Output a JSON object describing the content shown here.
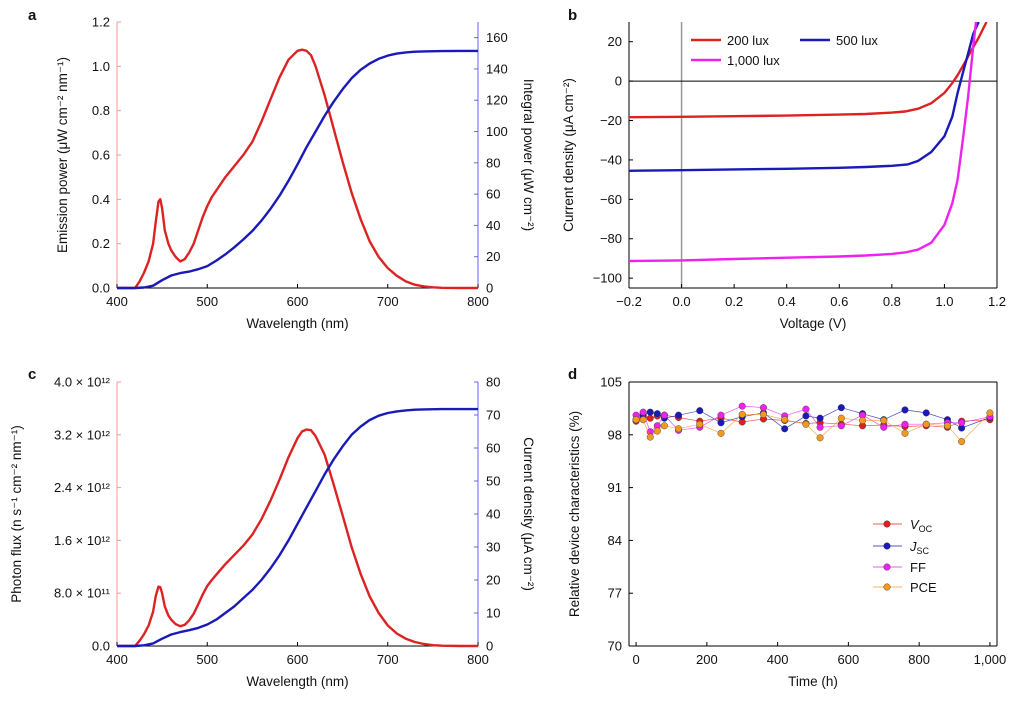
{
  "chart_data": [
    {
      "panel": "a",
      "type": "line",
      "xlabel": "Wavelength (nm)",
      "ylabel": "Emission power (μW cm⁻² nm⁻¹)",
      "y2label": "Integral power (μW cm⁻²)",
      "xlim": [
        400,
        800
      ],
      "ylim": [
        0,
        1.2
      ],
      "y2lim": [
        0,
        170
      ],
      "xticks": [
        "400",
        "500",
        "600",
        "700",
        "800"
      ],
      "yticks": [
        "0.0",
        "0.2",
        "0.4",
        "0.6",
        "0.8",
        "1.0",
        "1.2"
      ],
      "y2ticks": [
        "0",
        "20",
        "40",
        "60",
        "80",
        "100",
        "120",
        "140",
        "160"
      ],
      "colors": {
        "left_axis": "#f29a9a",
        "right_axis": "#6666ee"
      },
      "series": [
        {
          "color": "#dd2222",
          "axis": "left",
          "x": [
            400,
            415,
            420,
            425,
            430,
            435,
            440,
            443,
            446,
            448,
            450,
            453,
            457,
            460,
            465,
            470,
            475,
            480,
            485,
            490,
            495,
            500,
            505,
            510,
            520,
            530,
            540,
            550,
            560,
            570,
            580,
            590,
            600,
            605,
            610,
            615,
            620,
            630,
            640,
            650,
            660,
            670,
            680,
            690,
            700,
            710,
            720,
            730,
            740,
            750,
            760,
            780,
            800
          ],
          "y": [
            0,
            0,
            0,
            0.03,
            0.07,
            0.12,
            0.2,
            0.3,
            0.39,
            0.4,
            0.36,
            0.26,
            0.2,
            0.17,
            0.14,
            0.12,
            0.13,
            0.16,
            0.2,
            0.26,
            0.32,
            0.37,
            0.41,
            0.44,
            0.5,
            0.55,
            0.6,
            0.66,
            0.75,
            0.85,
            0.95,
            1.03,
            1.07,
            1.075,
            1.07,
            1.05,
            1.0,
            0.87,
            0.72,
            0.57,
            0.43,
            0.31,
            0.21,
            0.14,
            0.09,
            0.055,
            0.03,
            0.015,
            0.007,
            0.003,
            0.001,
            0,
            0
          ]
        },
        {
          "color": "#1a1ab8",
          "axis": "right",
          "x": [
            400,
            420,
            430,
            440,
            450,
            460,
            470,
            480,
            490,
            500,
            510,
            520,
            530,
            540,
            550,
            560,
            570,
            580,
            590,
            600,
            610,
            620,
            630,
            640,
            650,
            660,
            670,
            680,
            690,
            700,
            710,
            720,
            730,
            740,
            760,
            780,
            800
          ],
          "y": [
            0,
            0,
            0.3,
            1.5,
            5,
            8,
            9.5,
            10.5,
            12,
            14,
            17.5,
            21.5,
            26,
            31,
            36.5,
            43,
            50.5,
            59,
            68.5,
            79,
            90,
            100,
            110,
            119,
            127,
            134,
            139.5,
            143.5,
            146.5,
            148.5,
            149.8,
            150.6,
            151,
            151.2,
            151.4,
            151.5,
            151.5
          ]
        }
      ]
    },
    {
      "panel": "b",
      "type": "line",
      "xlabel": "Voltage (V)",
      "ylabel": "Current density (μA cm⁻²)",
      "xlim": [
        -0.2,
        1.2
      ],
      "ylim": [
        -105,
        30
      ],
      "xticks": [
        "−0.2",
        "0.0",
        "0.2",
        "0.4",
        "0.6",
        "0.8",
        "1.0",
        "1.2"
      ],
      "yticks": [
        "−100",
        "−80",
        "−60",
        "−40",
        "−20",
        "0",
        "20"
      ],
      "legend_position": "top-left",
      "series": [
        {
          "name": "200 lux",
          "color": "#dd2222",
          "x": [
            -0.2,
            0,
            0.2,
            0.4,
            0.6,
            0.7,
            0.8,
            0.85,
            0.9,
            0.95,
            1.0,
            1.03,
            1.05,
            1.08,
            1.1,
            1.13,
            1.16
          ],
          "y": [
            -18.3,
            -18.1,
            -17.8,
            -17.5,
            -17,
            -16.7,
            -16,
            -15.4,
            -14,
            -11.2,
            -6,
            -1,
            3,
            10,
            15,
            22,
            30
          ]
        },
        {
          "name": "500 lux",
          "color": "#1a1ab8",
          "x": [
            -0.2,
            0,
            0.2,
            0.4,
            0.6,
            0.7,
            0.8,
            0.86,
            0.9,
            0.95,
            1.0,
            1.03,
            1.05,
            1.07,
            1.09,
            1.11,
            1.13
          ],
          "y": [
            -45.5,
            -45.2,
            -44.8,
            -44.5,
            -44,
            -43.6,
            -43,
            -42.3,
            -40.5,
            -36,
            -28,
            -18,
            -6,
            4,
            14,
            24,
            30
          ]
        },
        {
          "name": "1,000 lux",
          "color": "#ee22ee",
          "x": [
            -0.2,
            0,
            0.2,
            0.4,
            0.6,
            0.7,
            0.8,
            0.85,
            0.9,
            0.95,
            1.0,
            1.03,
            1.05,
            1.07,
            1.09,
            1.11,
            1.12
          ],
          "y": [
            -91.3,
            -91,
            -90.3,
            -89.6,
            -89,
            -88.5,
            -87.7,
            -87,
            -85.5,
            -82,
            -73,
            -62,
            -50,
            -30,
            -8,
            18,
            30
          ]
        }
      ]
    },
    {
      "panel": "c",
      "type": "line",
      "xlabel": "Wavelength (nm)",
      "ylabel": "Photon flux (n s⁻¹ cm⁻² nm⁻¹)",
      "y2label": "Current density (μA cm⁻²)",
      "xlim": [
        400,
        800
      ],
      "ylim": [
        0,
        4000000000000.0
      ],
      "y2lim": [
        0,
        80
      ],
      "xticks": [
        "400",
        "500",
        "600",
        "700",
        "800"
      ],
      "yticks": [
        "0.0",
        "8.0 × 10¹¹",
        "1.6 × 10¹²",
        "2.4 × 10¹²",
        "3.2 × 10¹²",
        "4.0 × 10¹²"
      ],
      "y2ticks": [
        "0",
        "10",
        "20",
        "30",
        "40",
        "50",
        "60",
        "70",
        "80"
      ],
      "colors": {
        "left_axis": "#f29a9a",
        "right_axis": "#6666ee"
      },
      "series": [
        {
          "color": "#dd2222",
          "axis": "left",
          "x": [
            400,
            415,
            420,
            425,
            430,
            435,
            440,
            443,
            446,
            448,
            450,
            453,
            457,
            460,
            465,
            470,
            475,
            480,
            485,
            490,
            495,
            500,
            505,
            510,
            520,
            530,
            540,
            550,
            560,
            570,
            580,
            590,
            600,
            605,
            610,
            615,
            620,
            630,
            640,
            650,
            660,
            670,
            680,
            690,
            700,
            710,
            720,
            730,
            740,
            750,
            760,
            780,
            800
          ],
          "y": [
            0,
            0,
            0,
            80000000000.0,
            180000000000.0,
            310000000000.0,
            520000000000.0,
            760000000000.0,
            900000000000.0,
            890000000000.0,
            800000000000.0,
            600000000000.0,
            460000000000.0,
            400000000000.0,
            330000000000.0,
            300000000000.0,
            320000000000.0,
            390000000000.0,
            490000000000.0,
            630000000000.0,
            780000000000.0,
            910000000000.0,
            1000000000000.0,
            1080000000000.0,
            1240000000000.0,
            1380000000000.0,
            1520000000000.0,
            1690000000000.0,
            1920000000000.0,
            2200000000000.0,
            2520000000000.0,
            2860000000000.0,
            3150000000000.0,
            3250000000000.0,
            3280000000000.0,
            3270000000000.0,
            3180000000000.0,
            2900000000000.0,
            2450000000000.0,
            1980000000000.0,
            1500000000000.0,
            1090000000000.0,
            750000000000.0,
            500000000000.0,
            310000000000.0,
            190000000000.0,
            110000000000.0,
            60000000000.0,
            30000000000.0,
            12000000000.0,
            4000000000.0,
            0,
            0
          ]
        },
        {
          "color": "#1a1ab8",
          "axis": "right",
          "x": [
            400,
            420,
            430,
            440,
            450,
            460,
            470,
            480,
            490,
            500,
            510,
            520,
            530,
            540,
            550,
            560,
            570,
            580,
            590,
            600,
            610,
            620,
            630,
            640,
            650,
            660,
            670,
            680,
            690,
            700,
            710,
            720,
            730,
            740,
            760,
            780,
            800
          ],
          "y": [
            0,
            0,
            0.2,
            0.8,
            2.2,
            3.5,
            4.2,
            4.8,
            5.5,
            6.5,
            8,
            10,
            12,
            14.5,
            17,
            20,
            23.5,
            27.5,
            32,
            37,
            42,
            47,
            52,
            56.5,
            60.5,
            64,
            66.5,
            68.5,
            69.8,
            70.6,
            71.1,
            71.4,
            71.6,
            71.7,
            71.8,
            71.8,
            71.8
          ]
        }
      ]
    },
    {
      "panel": "d",
      "type": "scatter",
      "xlabel": "Time (h)",
      "ylabel": "Relative device characteristics (%)",
      "xlim": [
        -20,
        1020
      ],
      "ylim": [
        70,
        105
      ],
      "xticks": [
        "0",
        "200",
        "400",
        "600",
        "800",
        "1,000"
      ],
      "yticks": [
        "70",
        "77",
        "84",
        "91",
        "98",
        "105"
      ],
      "legend_position": "bottom-right",
      "series": [
        {
          "name": "VOC",
          "name_main": "V",
          "name_sub": "OC",
          "color": "#e02020",
          "x": [
            0,
            20,
            40,
            60,
            80,
            120,
            180,
            240,
            300,
            360,
            420,
            480,
            520,
            580,
            640,
            700,
            760,
            820,
            880,
            920,
            1000
          ],
          "y": [
            99.8,
            100.4,
            100.2,
            100.5,
            100.6,
            100.3,
            99.8,
            100.2,
            99.7,
            100.1,
            99.9,
            99.5,
            99.6,
            99.4,
            99.2,
            99.3,
            99.1,
            99.2,
            99.0,
            99.8,
            100.0
          ]
        },
        {
          "name": "JSC",
          "name_main": "J",
          "name_sub": "SC",
          "color": "#1a1ab8",
          "x": [
            0,
            20,
            40,
            60,
            80,
            120,
            180,
            240,
            300,
            360,
            420,
            480,
            520,
            580,
            640,
            700,
            760,
            820,
            880,
            920,
            1000
          ],
          "y": [
            100.0,
            100.6,
            101.0,
            100.8,
            100.2,
            100.6,
            101.2,
            99.6,
            100.4,
            100.9,
            98.8,
            100.5,
            100.2,
            101.6,
            100.8,
            100.0,
            101.3,
            100.9,
            100.0,
            98.9,
            100.3
          ]
        },
        {
          "name": "FF",
          "name_main": "FF",
          "name_sub": "",
          "color": "#ee22ee",
          "x": [
            0,
            20,
            40,
            60,
            80,
            120,
            180,
            240,
            300,
            360,
            420,
            480,
            520,
            580,
            640,
            700,
            760,
            820,
            880,
            920,
            1000
          ],
          "y": [
            100.6,
            101.0,
            98.4,
            99.2,
            100.6,
            98.6,
            99.0,
            100.6,
            101.8,
            101.6,
            100.5,
            101.4,
            99.0,
            99.2,
            100.6,
            99.0,
            99.4,
            99.4,
            99.6,
            99.6,
            100.4
          ]
        },
        {
          "name": "PCE",
          "name_main": "PCE",
          "name_sub": "",
          "color": "#f39a1e",
          "x": [
            0,
            20,
            40,
            60,
            80,
            120,
            180,
            240,
            300,
            360,
            420,
            480,
            520,
            580,
            640,
            700,
            760,
            820,
            880,
            920,
            1000
          ],
          "y": [
            100.0,
            100.0,
            97.7,
            98.5,
            99.2,
            98.8,
            99.4,
            98.2,
            100.7,
            100.7,
            100.0,
            99.4,
            97.6,
            100.2,
            99.9,
            99.9,
            98.2,
            99.4,
            99.2,
            97.1,
            100.9
          ]
        }
      ]
    }
  ]
}
